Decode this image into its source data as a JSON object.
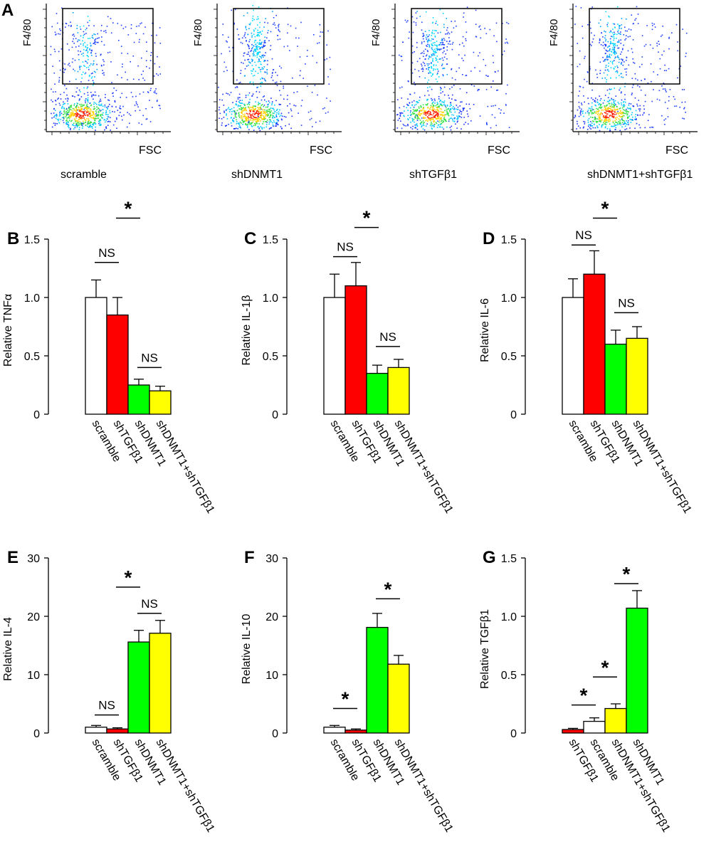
{
  "flow_panel": {
    "letter": "A",
    "y_label": "F4/80",
    "x_label": "FSC",
    "plots": [
      {
        "name": "scramble",
        "label": "scramble",
        "gate_fraction": 0.2
      },
      {
        "name": "shdnmt1",
        "label": "shDNMT1",
        "gate_fraction": 0.35
      },
      {
        "name": "shtgfb1",
        "label": "shTGFβ1",
        "gate_fraction": 0.3
      },
      {
        "name": "shdnmt1-shtgfb1",
        "label": "shDNMT1+shTGFβ1",
        "gate_fraction": 0.3
      }
    ]
  },
  "colors": {
    "scramble": "#ffffff",
    "shTGFβ1": "#ff0000",
    "shDNMT1": "#00ff00",
    "shDNMT1+shTGFβ1": "#ffff00",
    "axis": "#000000"
  },
  "chart_data": [
    {
      "panel": "B",
      "type": "bar",
      "ylabel": "Relative TNFα",
      "ylim": [
        0,
        1.5
      ],
      "yticks": [
        "0",
        "0.5",
        "1.0",
        "1.5"
      ],
      "ytick_values": [
        0,
        0.5,
        1.0,
        1.5
      ],
      "categories": [
        "scramble",
        "shTGFβ1",
        "shDNMT1",
        "shDNMT1+shTGFβ1"
      ],
      "values": [
        1.0,
        0.85,
        0.25,
        0.2
      ],
      "errors": [
        0.15,
        0.15,
        0.05,
        0.04
      ],
      "annotations": [
        {
          "label": "*",
          "from": 1,
          "to": 2,
          "value": 1.68
        },
        {
          "label": "NS",
          "from": 0,
          "to": 1,
          "value": 1.3
        },
        {
          "label": "NS",
          "from": 2,
          "to": 3,
          "value": 0.4
        }
      ]
    },
    {
      "panel": "C",
      "type": "bar",
      "ylabel": "Relative IL-1β",
      "ylim": [
        0,
        1.5
      ],
      "yticks": [
        "0",
        "0.5",
        "1.0",
        "1.5"
      ],
      "ytick_values": [
        0,
        0.5,
        1.0,
        1.5
      ],
      "categories": [
        "scramble",
        "shTGFβ1",
        "shDNMT1",
        "shDNMT1+shTGFβ1"
      ],
      "values": [
        1.0,
        1.1,
        0.35,
        0.4
      ],
      "errors": [
        0.2,
        0.2,
        0.07,
        0.07
      ],
      "annotations": [
        {
          "label": "*",
          "from": 1,
          "to": 2,
          "value": 1.6
        },
        {
          "label": "NS",
          "from": 0,
          "to": 1,
          "value": 1.35
        },
        {
          "label": "NS",
          "from": 2,
          "to": 3,
          "value": 0.58
        }
      ]
    },
    {
      "panel": "D",
      "type": "bar",
      "ylabel": "Relative IL-6",
      "ylim": [
        0,
        1.5
      ],
      "yticks": [
        "0",
        "0.5",
        "1.0",
        "1.5"
      ],
      "ytick_values": [
        0,
        0.5,
        1.0,
        1.5
      ],
      "categories": [
        "scramble",
        "shTGFβ1",
        "shDNMT1",
        "shDNMT1+shTGFβ1"
      ],
      "values": [
        1.0,
        1.2,
        0.6,
        0.65
      ],
      "errors": [
        0.16,
        0.2,
        0.12,
        0.1
      ],
      "annotations": [
        {
          "label": "*",
          "from": 1,
          "to": 2,
          "value": 1.68
        },
        {
          "label": "NS",
          "from": 0,
          "to": 1,
          "value": 1.45
        },
        {
          "label": "NS",
          "from": 2,
          "to": 3,
          "value": 0.87
        }
      ]
    },
    {
      "panel": "E",
      "type": "bar",
      "ylabel": "Relative IL-4",
      "ylim": [
        0,
        30
      ],
      "yticks": [
        "0",
        "10",
        "20",
        "30"
      ],
      "ytick_values": [
        0,
        10,
        20,
        30
      ],
      "categories": [
        "scramble",
        "shTGFβ1",
        "shDNMT1",
        "shDNMT1+shTGFβ1"
      ],
      "values": [
        1.0,
        0.7,
        15.6,
        17.1
      ],
      "errors": [
        0.3,
        0.2,
        2.0,
        2.2
      ],
      "annotations": [
        {
          "label": "*",
          "from": 1,
          "to": 2,
          "value": 25.0
        },
        {
          "label": "NS",
          "from": 2,
          "to": 3,
          "value": 20.5
        },
        {
          "label": "NS",
          "from": 0,
          "to": 1,
          "value": 3.1
        }
      ]
    },
    {
      "panel": "F",
      "type": "bar",
      "ylabel": "Relative IL-10",
      "ylim": [
        0,
        30
      ],
      "yticks": [
        "0",
        "10",
        "20",
        "30"
      ],
      "ytick_values": [
        0,
        10,
        20,
        30
      ],
      "categories": [
        "scramble",
        "shTGFβ1",
        "shDNMT1",
        "shDNMT1+shTGFβ1"
      ],
      "values": [
        1.0,
        0.5,
        18.1,
        11.8
      ],
      "errors": [
        0.3,
        0.2,
        2.4,
        1.5
      ],
      "annotations": [
        {
          "label": "*",
          "from": 2,
          "to": 3,
          "value": 23.0
        },
        {
          "label": "*",
          "from": 0,
          "to": 1,
          "value": 4.2
        }
      ]
    },
    {
      "panel": "G",
      "type": "bar",
      "ylabel": "Relative  TGFβ1",
      "ylim": [
        0,
        1.5
      ],
      "yticks": [
        "0",
        "0.5",
        "1.0",
        "1.5"
      ],
      "ytick_values": [
        0,
        0.5,
        1.0,
        1.5
      ],
      "categories": [
        "shTGFβ1",
        "scramble",
        "shDNMT1+shTGFβ1",
        "shDNMT1"
      ],
      "values": [
        0.03,
        0.1,
        0.21,
        1.07
      ],
      "errors": [
        0.01,
        0.03,
        0.04,
        0.15
      ],
      "annotations": [
        {
          "label": "*",
          "from": 2,
          "to": 3,
          "value": 1.28
        },
        {
          "label": "*",
          "from": 1,
          "to": 2,
          "value": 0.48
        },
        {
          "label": "*",
          "from": 0,
          "to": 1,
          "value": 0.24
        }
      ]
    }
  ]
}
